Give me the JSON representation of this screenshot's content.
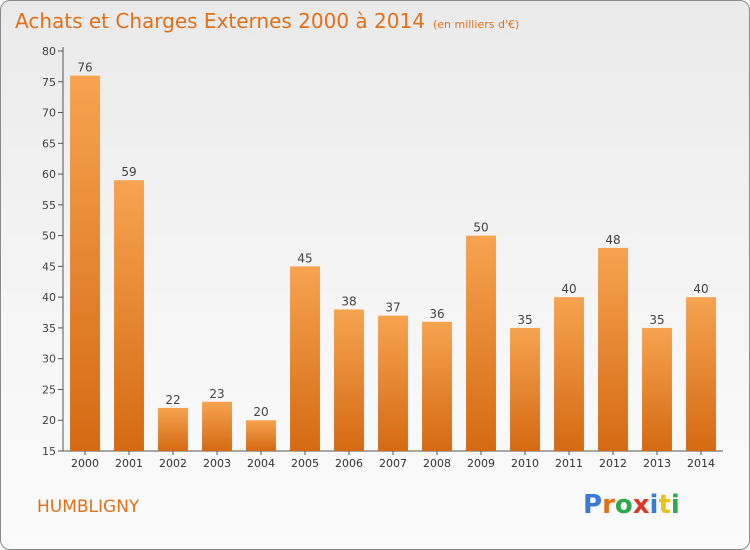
{
  "header": {
    "title": "Achats et Charges Externes 2000 à 2014",
    "subtitle": "(en milliers d'€)"
  },
  "footer": {
    "commune": "HUMBLIGNY",
    "logo_text": "Proxiti",
    "logo_colors": [
      "#3a7bd5",
      "#e0701a",
      "#2ea84a",
      "#d93a2a",
      "#3a7bd5",
      "#e8c21a",
      "#2ea84a"
    ]
  },
  "colors": {
    "bar_top": "#f7a350",
    "bar_bottom": "#d46a12",
    "title": "#e0701a"
  },
  "chart_data": {
    "type": "bar",
    "categories": [
      "2000",
      "2001",
      "2002",
      "2003",
      "2004",
      "2005",
      "2006",
      "2007",
      "2008",
      "2009",
      "2010",
      "2011",
      "2012",
      "2013",
      "2014"
    ],
    "values": [
      76,
      59,
      22,
      23,
      20,
      45,
      38,
      37,
      36,
      50,
      35,
      40,
      48,
      35,
      40
    ],
    "ylim": [
      15,
      80
    ],
    "yticks": [
      15,
      20,
      25,
      30,
      35,
      40,
      45,
      50,
      55,
      60,
      65,
      70,
      75,
      80
    ],
    "grid": false,
    "data_labels": true
  }
}
